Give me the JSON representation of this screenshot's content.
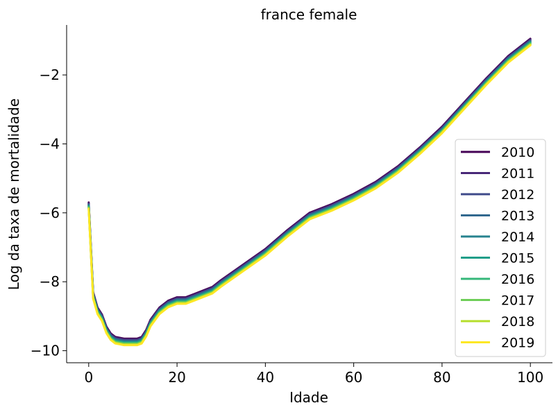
{
  "chart_data": {
    "type": "line",
    "title": "france female",
    "xlabel": "Idade",
    "ylabel": "Log da taxa de mortalidade",
    "xlim": [
      -5,
      105
    ],
    "ylim": [
      -10.35,
      -0.55
    ],
    "xticks": [
      0,
      20,
      40,
      60,
      80,
      100
    ],
    "xtick_labels": [
      "0",
      "20",
      "40",
      "60",
      "80",
      "100"
    ],
    "yticks": [
      -10,
      -8,
      -6,
      -4,
      -2
    ],
    "ytick_labels": [
      "−10",
      "−8",
      "−6",
      "−4",
      "−2"
    ],
    "grid": false,
    "legend_position": "lower right",
    "colormap": "viridis",
    "x": [
      0,
      1,
      2,
      3,
      4,
      5,
      6,
      8,
      10,
      11,
      12,
      13,
      14,
      16,
      18,
      20,
      22,
      24,
      26,
      28,
      30,
      35,
      40,
      45,
      50,
      55,
      60,
      65,
      70,
      75,
      80,
      85,
      90,
      95,
      100
    ],
    "base_values": [
      -5.7,
      -8.3,
      -8.75,
      -8.95,
      -9.3,
      -9.5,
      -9.6,
      -9.65,
      -9.65,
      -9.65,
      -9.6,
      -9.4,
      -9.1,
      -8.75,
      -8.55,
      -8.45,
      -8.45,
      -8.35,
      -8.25,
      -8.15,
      -7.95,
      -7.5,
      -7.05,
      -6.5,
      -6.0,
      -5.75,
      -5.45,
      -5.1,
      -4.65,
      -4.1,
      -3.5,
      -2.8,
      -2.1,
      -1.45,
      -0.95
    ],
    "series": [
      {
        "name": "2010",
        "color": "#440154",
        "offset": 0.0
      },
      {
        "name": "2011",
        "color": "#482878",
        "offset": -0.025
      },
      {
        "name": "2012",
        "color": "#3e4989",
        "offset": -0.05
      },
      {
        "name": "2013",
        "color": "#31688e",
        "offset": -0.07
      },
      {
        "name": "2014",
        "color": "#26828e",
        "offset": -0.09
      },
      {
        "name": "2015",
        "color": "#1f9e89",
        "offset": -0.11
      },
      {
        "name": "2016",
        "color": "#35b779",
        "offset": -0.13
      },
      {
        "name": "2017",
        "color": "#6ece58",
        "offset": -0.15
      },
      {
        "name": "2018",
        "color": "#b5de2b",
        "offset": -0.17
      },
      {
        "name": "2019",
        "color": "#fde725",
        "offset": -0.19
      }
    ]
  }
}
